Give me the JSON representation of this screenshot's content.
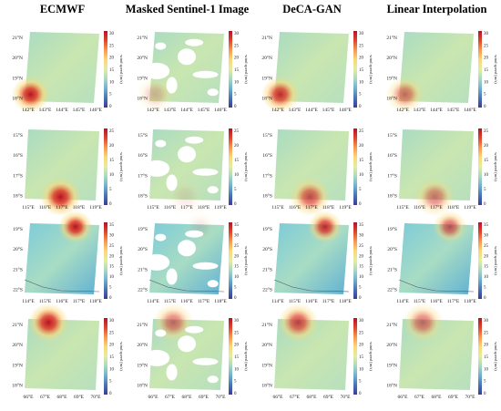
{
  "columns": [
    "ECMWF",
    "Masked Sentinel-1 Image",
    "DeCA-GAN",
    "Linear Interpolation"
  ],
  "colorbar_label": "wind speed (m/s)",
  "colorbar_colors": [
    "#3b3a9a",
    "#4a74b4",
    "#6fb1cf",
    "#a9d9c2",
    "#e3eda0",
    "#fbd878",
    "#f59a4f",
    "#e0452d",
    "#b41326"
  ],
  "rows": [
    {
      "name": "scene-1",
      "lat_ticks": [
        "21°N",
        "20°N",
        "19°N",
        "18°N"
      ],
      "lon_ticks": [
        "142°E",
        "143°E",
        "144°E",
        "145°E",
        "146°E"
      ],
      "cbar_ticks": [
        "30",
        "25",
        "20",
        "15",
        "10",
        "5",
        "0"
      ]
    },
    {
      "name": "scene-2",
      "lat_ticks": [
        "15°S",
        "16°S",
        "17°S",
        "18°S"
      ],
      "lon_ticks": [
        "115°E",
        "116°E",
        "117°E",
        "118°E",
        "119°E"
      ],
      "cbar_ticks": [
        "25",
        "20",
        "15",
        "10",
        "5",
        "0"
      ]
    },
    {
      "name": "scene-3",
      "lat_ticks": [
        "19°S",
        "20°S",
        "21°S",
        "22°S"
      ],
      "lon_ticks": [
        "114°E",
        "115°E",
        "116°E",
        "117°E",
        "118°E"
      ],
      "cbar_ticks": [
        "35",
        "30",
        "25",
        "20",
        "15",
        "10",
        "5",
        "0"
      ]
    },
    {
      "name": "scene-4",
      "lat_ticks": [
        "21°N",
        "20°N",
        "19°N",
        "18°N"
      ],
      "lon_ticks": [
        "66°E",
        "67°E",
        "68°E",
        "69°E",
        "70°E"
      ],
      "cbar_ticks": [
        "30",
        "25",
        "20",
        "15",
        "10",
        "5",
        "0"
      ]
    }
  ]
}
